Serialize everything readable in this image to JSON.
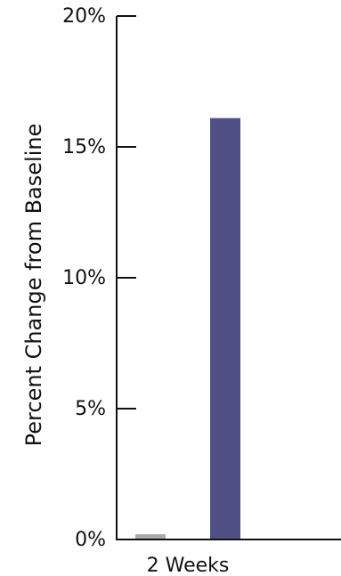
{
  "chart_data": {
    "type": "bar",
    "title": "",
    "xlabel": "",
    "ylabel": "Percent Change from Baseline",
    "categories": [
      "2 Weeks"
    ],
    "series": [
      {
        "color": "#a9a9ad",
        "values": [
          0.2
        ]
      },
      {
        "color": "#4f4f86",
        "values": [
          16.1
        ]
      }
    ],
    "ylim": [
      0,
      20
    ],
    "yticks": [
      0,
      5,
      10,
      15,
      20
    ],
    "ytick_labels": [
      "0%",
      "5%",
      "10%",
      "15%",
      "20%"
    ],
    "grid": false,
    "legend": "none"
  }
}
